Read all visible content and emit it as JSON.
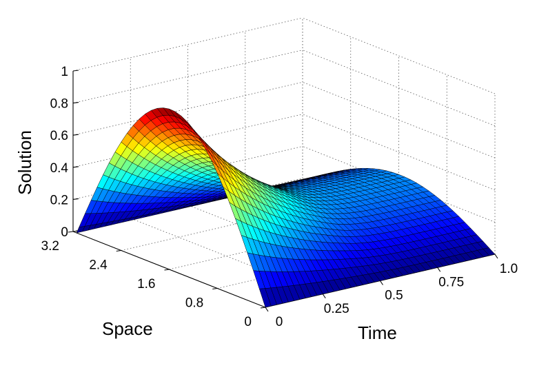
{
  "chart_data": {
    "type": "surface",
    "title": "",
    "xlabel": "Time",
    "ylabel": "Space",
    "zlabel": "Solution",
    "x_ticks": [
      "0",
      "0.25",
      "0.5",
      "0.75",
      "1.0"
    ],
    "y_ticks": [
      "0",
      "0.8",
      "1.6",
      "2.4",
      "3.2"
    ],
    "z_ticks": [
      "0",
      "0.2",
      "0.4",
      "0.6",
      "0.8",
      "1"
    ],
    "xlim": [
      0,
      1
    ],
    "ylim": [
      0,
      3.2
    ],
    "zlim": [
      0,
      1
    ],
    "grid": true,
    "colormap": "jet",
    "surface": {
      "description_of_values": "z = amplitude(t) * sin(y)",
      "t_values": [
        0,
        0.025,
        0.05,
        0.075,
        0.1,
        0.125,
        0.15,
        0.175,
        0.2,
        0.225,
        0.25,
        0.275,
        0.3,
        0.325,
        0.35,
        0.375,
        0.4,
        0.425,
        0.45,
        0.475,
        0.5,
        0.525,
        0.55,
        0.575,
        0.6,
        0.625,
        0.65,
        0.675,
        0.7,
        0.725,
        0.75,
        0.775,
        0.8,
        0.825,
        0.85,
        0.875,
        0.9,
        0.925,
        0.95,
        0.975,
        1.0
      ],
      "amplitude": [
        1.0,
        0.946,
        0.895,
        0.847,
        0.801,
        0.758,
        0.717,
        0.679,
        0.642,
        0.608,
        0.575,
        0.544,
        0.515,
        0.487,
        0.461,
        0.436,
        0.413,
        0.391,
        0.37,
        0.35,
        0.331,
        0.315,
        0.302,
        0.292,
        0.283,
        0.277,
        0.272,
        0.268,
        0.266,
        0.264,
        0.263,
        0.262,
        0.262,
        0.261,
        0.261,
        0.261,
        0.261,
        0.261,
        0.261,
        0.261,
        0.261
      ],
      "y_values": [
        0,
        0.1,
        0.2,
        0.3,
        0.4,
        0.5,
        0.6,
        0.7,
        0.8,
        0.9,
        1.0,
        1.1,
        1.2,
        1.3,
        1.4,
        1.5,
        1.6,
        1.7,
        1.8,
        1.9,
        2.0,
        2.1,
        2.2,
        2.3,
        2.4,
        2.5,
        2.6,
        2.7,
        2.8,
        2.9,
        3.0,
        3.1,
        3.14159
      ]
    }
  }
}
